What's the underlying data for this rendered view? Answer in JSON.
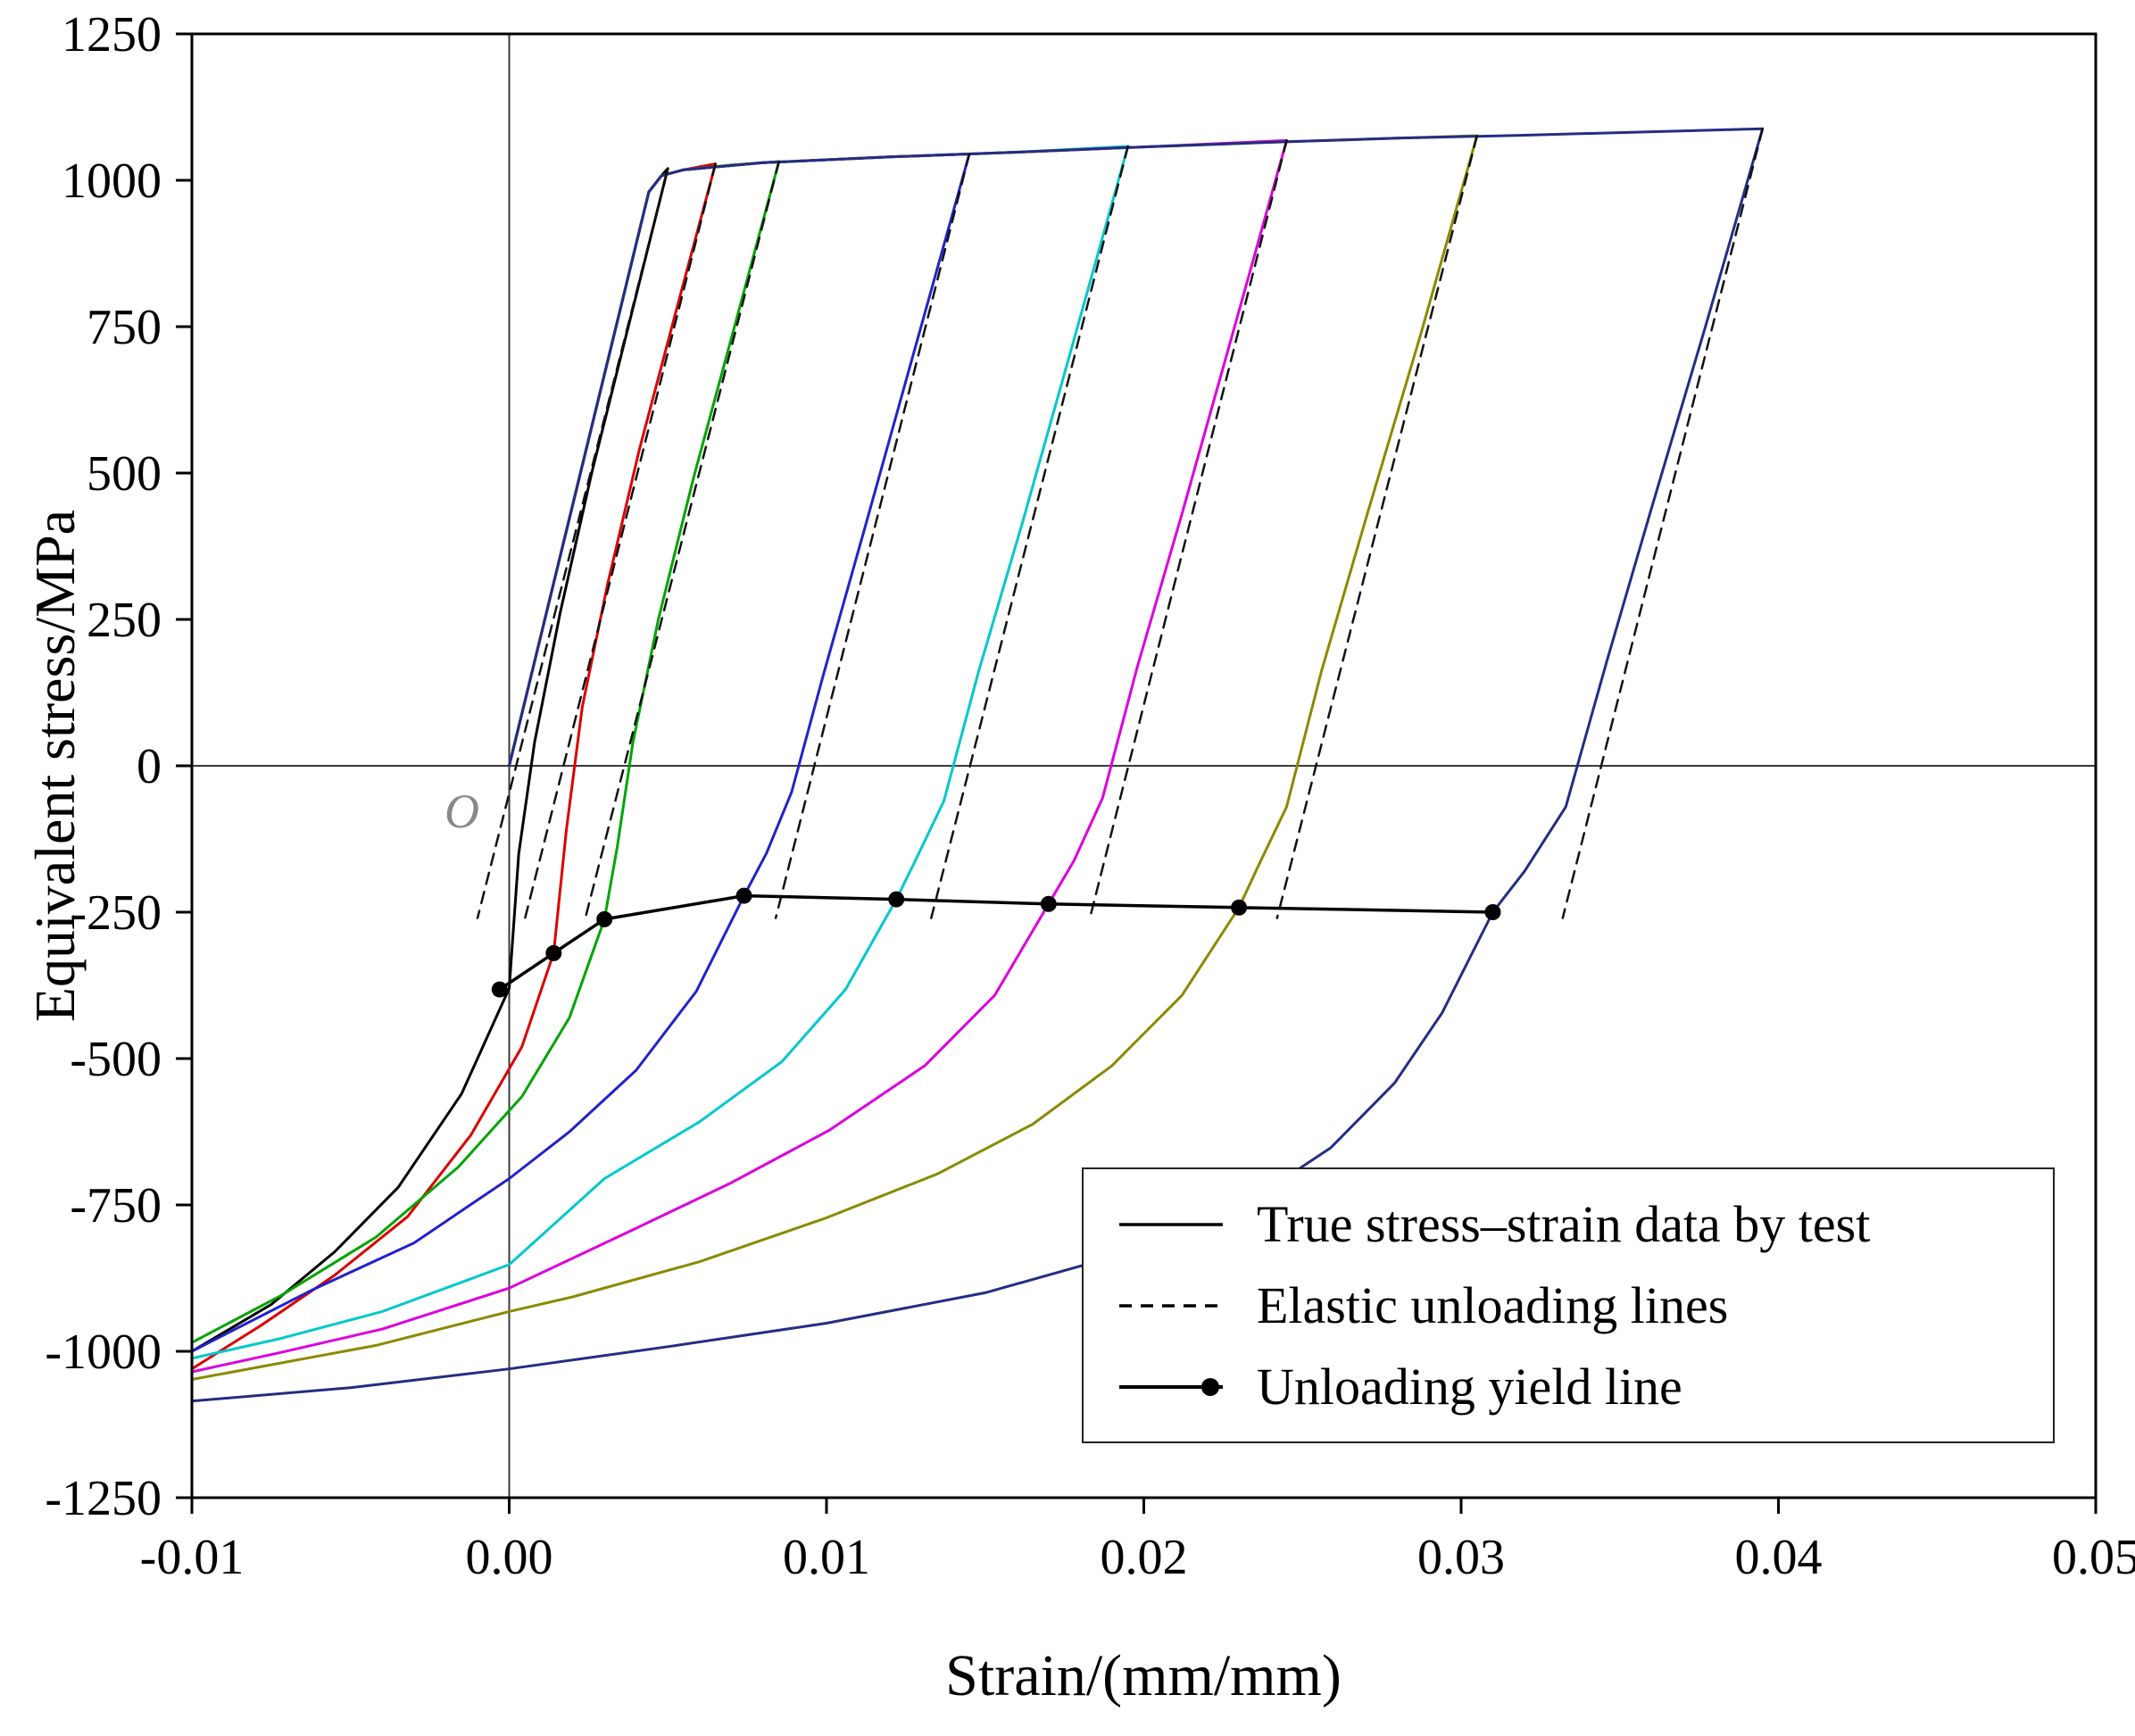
{
  "legend": {
    "items": [
      {
        "label": "True stress–strain data by test",
        "style": "solid"
      },
      {
        "label": "Elastic unloading lines",
        "style": "dashed"
      },
      {
        "label": "Unloading yield line",
        "style": "solid-marker"
      }
    ]
  },
  "chart_data": {
    "type": "line",
    "title": "",
    "xlabel": "Strain/(mm/mm)",
    "ylabel": "Equivalent stress/MPa",
    "origin_label": "O",
    "xlim": [
      -0.01,
      0.05
    ],
    "ylim": [
      -1250,
      1250
    ],
    "grid": false,
    "zero_lines": true,
    "legend_position": "lower right",
    "x_ticks": [
      {
        "v": -0.01,
        "label": "-0.01"
      },
      {
        "v": 0.0,
        "label": "0.00"
      },
      {
        "v": 0.01,
        "label": "0.01"
      },
      {
        "v": 0.02,
        "label": "0.02"
      },
      {
        "v": 0.03,
        "label": "0.03"
      },
      {
        "v": 0.04,
        "label": "0.04"
      },
      {
        "v": 0.05,
        "label": "0.05"
      }
    ],
    "y_ticks": [
      {
        "v": -1250,
        "label": "-1250"
      },
      {
        "v": -1000,
        "label": "-1000"
      },
      {
        "v": -750,
        "label": "-750"
      },
      {
        "v": -500,
        "label": "-500"
      },
      {
        "v": -250,
        "label": "-250"
      },
      {
        "v": 0,
        "label": "0"
      },
      {
        "v": 250,
        "label": "250"
      },
      {
        "v": 500,
        "label": "500"
      },
      {
        "v": 750,
        "label": "750"
      },
      {
        "v": 1000,
        "label": "1000"
      },
      {
        "v": 1250,
        "label": "1250"
      }
    ],
    "series": [
      {
        "name": "cycle-1-test",
        "role": "test",
        "color": "#000000",
        "points": [
          [
            0,
            0
          ],
          [
            0.0044,
            980
          ],
          [
            0.0048,
            1008
          ],
          [
            0.005,
            1020
          ],
          [
            0.0038,
            760
          ],
          [
            0.0026,
            500
          ],
          [
            0.0016,
            260
          ],
          [
            0.0008,
            40
          ],
          [
            0.0003,
            -150
          ],
          [
            0.0,
            -380
          ],
          [
            -0.0015,
            -560
          ],
          [
            -0.0035,
            -720
          ],
          [
            -0.0055,
            -830
          ],
          [
            -0.0075,
            -920
          ],
          [
            -0.01,
            -1000
          ]
        ]
      },
      {
        "name": "cycle-2-test",
        "role": "test",
        "color": "#dd0000",
        "points": [
          [
            0,
            0
          ],
          [
            0.0044,
            980
          ],
          [
            0.0048,
            1008
          ],
          [
            0.0055,
            1018
          ],
          [
            0.0065,
            1028
          ],
          [
            0.0053,
            785
          ],
          [
            0.0041,
            540
          ],
          [
            0.0031,
            310
          ],
          [
            0.0023,
            100
          ],
          [
            0.0018,
            -110
          ],
          [
            0.0014,
            -320
          ],
          [
            0.0004,
            -480
          ],
          [
            -0.0012,
            -630
          ],
          [
            -0.0032,
            -770
          ],
          [
            -0.0055,
            -870
          ],
          [
            -0.0078,
            -955
          ],
          [
            -0.01,
            -1030
          ]
        ]
      },
      {
        "name": "cycle-3-test",
        "role": "test",
        "color": "#00a400",
        "points": [
          [
            0,
            0
          ],
          [
            0.0044,
            980
          ],
          [
            0.0048,
            1008
          ],
          [
            0.0055,
            1018
          ],
          [
            0.007,
            1026
          ],
          [
            0.0085,
            1032
          ],
          [
            0.0071,
            750
          ],
          [
            0.0058,
            490
          ],
          [
            0.0047,
            250
          ],
          [
            0.0039,
            40
          ],
          [
            0.0034,
            -140
          ],
          [
            0.003,
            -262
          ],
          [
            0.0019,
            -430
          ],
          [
            0.0004,
            -565
          ],
          [
            -0.0016,
            -685
          ],
          [
            -0.0042,
            -805
          ],
          [
            -0.0072,
            -905
          ],
          [
            -0.01,
            -985
          ]
        ]
      },
      {
        "name": "cycle-4-test",
        "role": "test",
        "color": "#2222cc",
        "points": [
          [
            0,
            0
          ],
          [
            0.0044,
            980
          ],
          [
            0.0048,
            1008
          ],
          [
            0.0055,
            1018
          ],
          [
            0.008,
            1030
          ],
          [
            0.012,
            1040
          ],
          [
            0.0145,
            1045
          ],
          [
            0.0128,
            715
          ],
          [
            0.0112,
            405
          ],
          [
            0.0099,
            155
          ],
          [
            0.0089,
            -45
          ],
          [
            0.0081,
            -150
          ],
          [
            0.0074,
            -222
          ],
          [
            0.0059,
            -385
          ],
          [
            0.004,
            -520
          ],
          [
            0.0019,
            -625
          ],
          [
            0.0,
            -705
          ],
          [
            -0.003,
            -815
          ],
          [
            -0.0062,
            -895
          ],
          [
            -0.01,
            -1000
          ]
        ]
      },
      {
        "name": "cycle-5-test",
        "role": "test",
        "color": "#00c8cc",
        "points": [
          [
            0,
            0
          ],
          [
            0.0044,
            980
          ],
          [
            0.0048,
            1008
          ],
          [
            0.0055,
            1018
          ],
          [
            0.008,
            1030
          ],
          [
            0.012,
            1040
          ],
          [
            0.016,
            1048
          ],
          [
            0.0195,
            1058
          ],
          [
            0.0178,
            728
          ],
          [
            0.0162,
            420
          ],
          [
            0.0148,
            162
          ],
          [
            0.0137,
            -60
          ],
          [
            0.0128,
            -162
          ],
          [
            0.0122,
            -228
          ],
          [
            0.0106,
            -382
          ],
          [
            0.0086,
            -505
          ],
          [
            0.006,
            -608
          ],
          [
            0.003,
            -705
          ],
          [
            0.0,
            -852
          ],
          [
            -0.004,
            -932
          ],
          [
            -0.0072,
            -978
          ],
          [
            -0.01,
            -1012
          ]
        ]
      },
      {
        "name": "cycle-6-test",
        "role": "test",
        "color": "#dd00dd",
        "points": [
          [
            0,
            0
          ],
          [
            0.0044,
            980
          ],
          [
            0.0048,
            1008
          ],
          [
            0.0055,
            1018
          ],
          [
            0.008,
            1030
          ],
          [
            0.012,
            1040
          ],
          [
            0.016,
            1048
          ],
          [
            0.02,
            1057
          ],
          [
            0.0245,
            1068
          ],
          [
            0.0228,
            738
          ],
          [
            0.0212,
            430
          ],
          [
            0.0198,
            170
          ],
          [
            0.0187,
            -55
          ],
          [
            0.0178,
            -162
          ],
          [
            0.017,
            -236
          ],
          [
            0.0153,
            -392
          ],
          [
            0.0131,
            -512
          ],
          [
            0.0101,
            -622
          ],
          [
            0.007,
            -712
          ],
          [
            0.0038,
            -795
          ],
          [
            0.0,
            -892
          ],
          [
            -0.004,
            -962
          ],
          [
            -0.0072,
            -1002
          ],
          [
            -0.01,
            -1035
          ]
        ]
      },
      {
        "name": "cycle-7-test",
        "role": "test",
        "color": "#8a8a00",
        "points": [
          [
            0,
            0
          ],
          [
            0.0044,
            980
          ],
          [
            0.0048,
            1008
          ],
          [
            0.0055,
            1018
          ],
          [
            0.008,
            1030
          ],
          [
            0.012,
            1040
          ],
          [
            0.016,
            1048
          ],
          [
            0.02,
            1057
          ],
          [
            0.024,
            1065
          ],
          [
            0.028,
            1072
          ],
          [
            0.0305,
            1076
          ],
          [
            0.0287,
            732
          ],
          [
            0.027,
            422
          ],
          [
            0.0256,
            162
          ],
          [
            0.0245,
            -70
          ],
          [
            0.0236,
            -172
          ],
          [
            0.023,
            -242
          ],
          [
            0.0212,
            -392
          ],
          [
            0.019,
            -512
          ],
          [
            0.0165,
            -612
          ],
          [
            0.0135,
            -697
          ],
          [
            0.01,
            -772
          ],
          [
            0.006,
            -847
          ],
          [
            0.002,
            -907
          ],
          [
            0.0,
            -932
          ],
          [
            -0.0042,
            -990
          ],
          [
            -0.0072,
            -1020
          ],
          [
            -0.01,
            -1048
          ]
        ]
      },
      {
        "name": "cycle-8-test",
        "role": "test",
        "color": "#242d83",
        "points": [
          [
            0,
            0
          ],
          [
            0.0044,
            980
          ],
          [
            0.0048,
            1008
          ],
          [
            0.0055,
            1018
          ],
          [
            0.008,
            1030
          ],
          [
            0.012,
            1040
          ],
          [
            0.016,
            1048
          ],
          [
            0.02,
            1057
          ],
          [
            0.024,
            1065
          ],
          [
            0.028,
            1072
          ],
          [
            0.032,
            1077
          ],
          [
            0.036,
            1083
          ],
          [
            0.0395,
            1088
          ],
          [
            0.0377,
            750
          ],
          [
            0.036,
            440
          ],
          [
            0.0346,
            180
          ],
          [
            0.0333,
            -70
          ],
          [
            0.032,
            -180
          ],
          [
            0.031,
            -250
          ],
          [
            0.0294,
            -422
          ],
          [
            0.0279,
            -542
          ],
          [
            0.0259,
            -652
          ],
          [
            0.0234,
            -742
          ],
          [
            0.0198,
            -827
          ],
          [
            0.015,
            -900
          ],
          [
            0.01,
            -952
          ],
          [
            0.005,
            -992
          ],
          [
            0.0,
            -1030
          ],
          [
            -0.005,
            -1062
          ],
          [
            -0.01,
            -1085
          ]
        ]
      },
      {
        "name": "elastic-unloading-1",
        "role": "elastic",
        "color": "#111111",
        "dash": true,
        "points": [
          [
            0.005,
            1020
          ],
          [
            -0.001,
            -260
          ]
        ]
      },
      {
        "name": "elastic-unloading-2",
        "role": "elastic",
        "color": "#111111",
        "dash": true,
        "points": [
          [
            0.0065,
            1028
          ],
          [
            0.0005,
            -260
          ]
        ]
      },
      {
        "name": "elastic-unloading-3",
        "role": "elastic",
        "color": "#111111",
        "dash": true,
        "points": [
          [
            0.0085,
            1032
          ],
          [
            0.0024,
            -260
          ]
        ]
      },
      {
        "name": "elastic-unloading-4",
        "role": "elastic",
        "color": "#111111",
        "dash": true,
        "points": [
          [
            0.0145,
            1045
          ],
          [
            0.0084,
            -260
          ]
        ]
      },
      {
        "name": "elastic-unloading-5",
        "role": "elastic",
        "color": "#111111",
        "dash": true,
        "points": [
          [
            0.0195,
            1058
          ],
          [
            0.0133,
            -260
          ]
        ]
      },
      {
        "name": "elastic-unloading-6",
        "role": "elastic",
        "color": "#111111",
        "dash": true,
        "points": [
          [
            0.0245,
            1068
          ],
          [
            0.0183,
            -260
          ]
        ]
      },
      {
        "name": "elastic-unloading-7",
        "role": "elastic",
        "color": "#111111",
        "dash": true,
        "points": [
          [
            0.0305,
            1076
          ],
          [
            0.0242,
            -260
          ]
        ]
      },
      {
        "name": "elastic-unloading-8",
        "role": "elastic",
        "color": "#111111",
        "dash": true,
        "points": [
          [
            0.0395,
            1088
          ],
          [
            0.0332,
            -260
          ]
        ]
      },
      {
        "name": "unloading-yield-line",
        "role": "yield",
        "color": "#000000",
        "marker": true,
        "points": [
          [
            -0.0003,
            -382
          ],
          [
            0.0014,
            -320
          ],
          [
            0.003,
            -262
          ],
          [
            0.0074,
            -222
          ],
          [
            0.0122,
            -228
          ],
          [
            0.017,
            -236
          ],
          [
            0.023,
            -242
          ],
          [
            0.031,
            -250
          ]
        ]
      }
    ]
  }
}
